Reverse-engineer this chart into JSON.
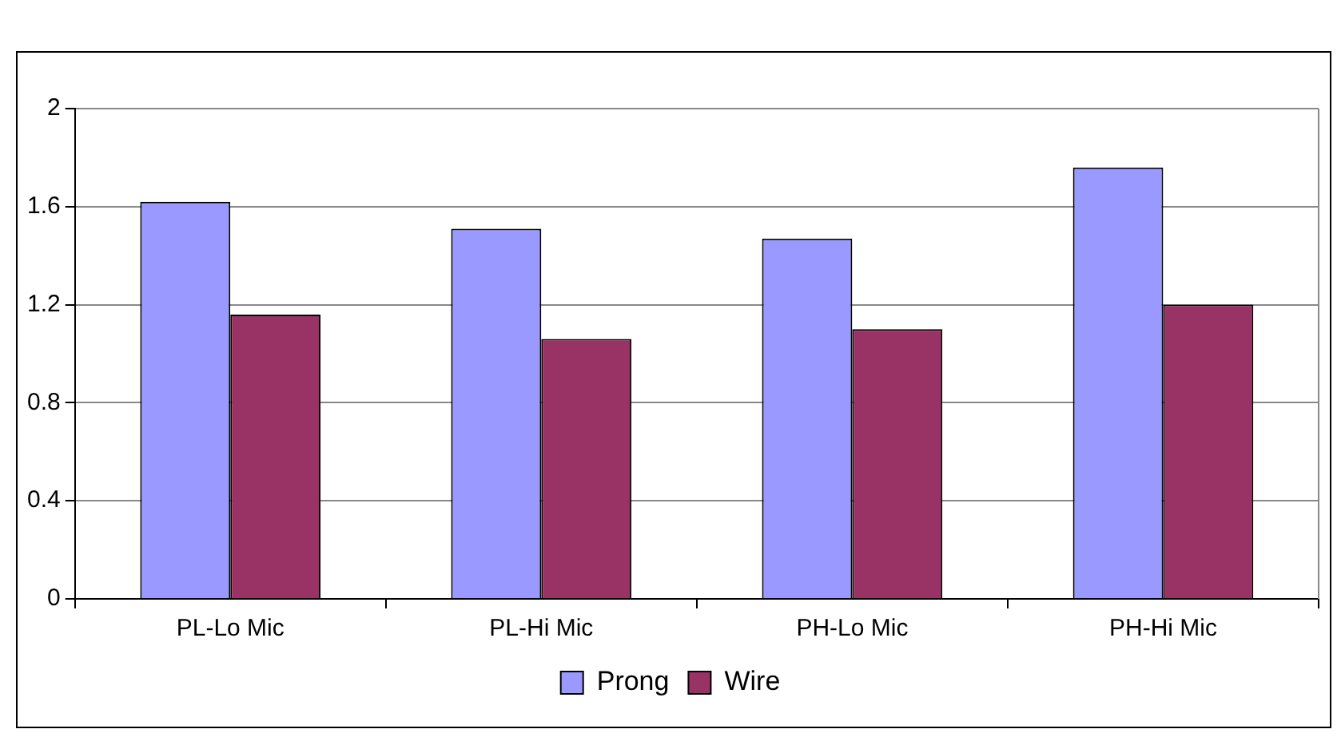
{
  "chart_data": {
    "type": "bar",
    "categories": [
      "PL-Lo Mic",
      "PL-Hi Mic",
      "PH-Lo Mic",
      "PH-Hi Mic"
    ],
    "series": [
      {
        "name": "Prong",
        "color": "#9999ff",
        "values": [
          1.62,
          1.51,
          1.47,
          1.76
        ]
      },
      {
        "name": "Wire",
        "color": "#993366",
        "values": [
          1.16,
          1.06,
          1.1,
          1.2
        ]
      }
    ],
    "ylim": [
      0,
      2
    ],
    "yticks": [
      0,
      0.4,
      0.8,
      1.2,
      1.6,
      2
    ],
    "grid": "y",
    "legend": "bottom"
  }
}
